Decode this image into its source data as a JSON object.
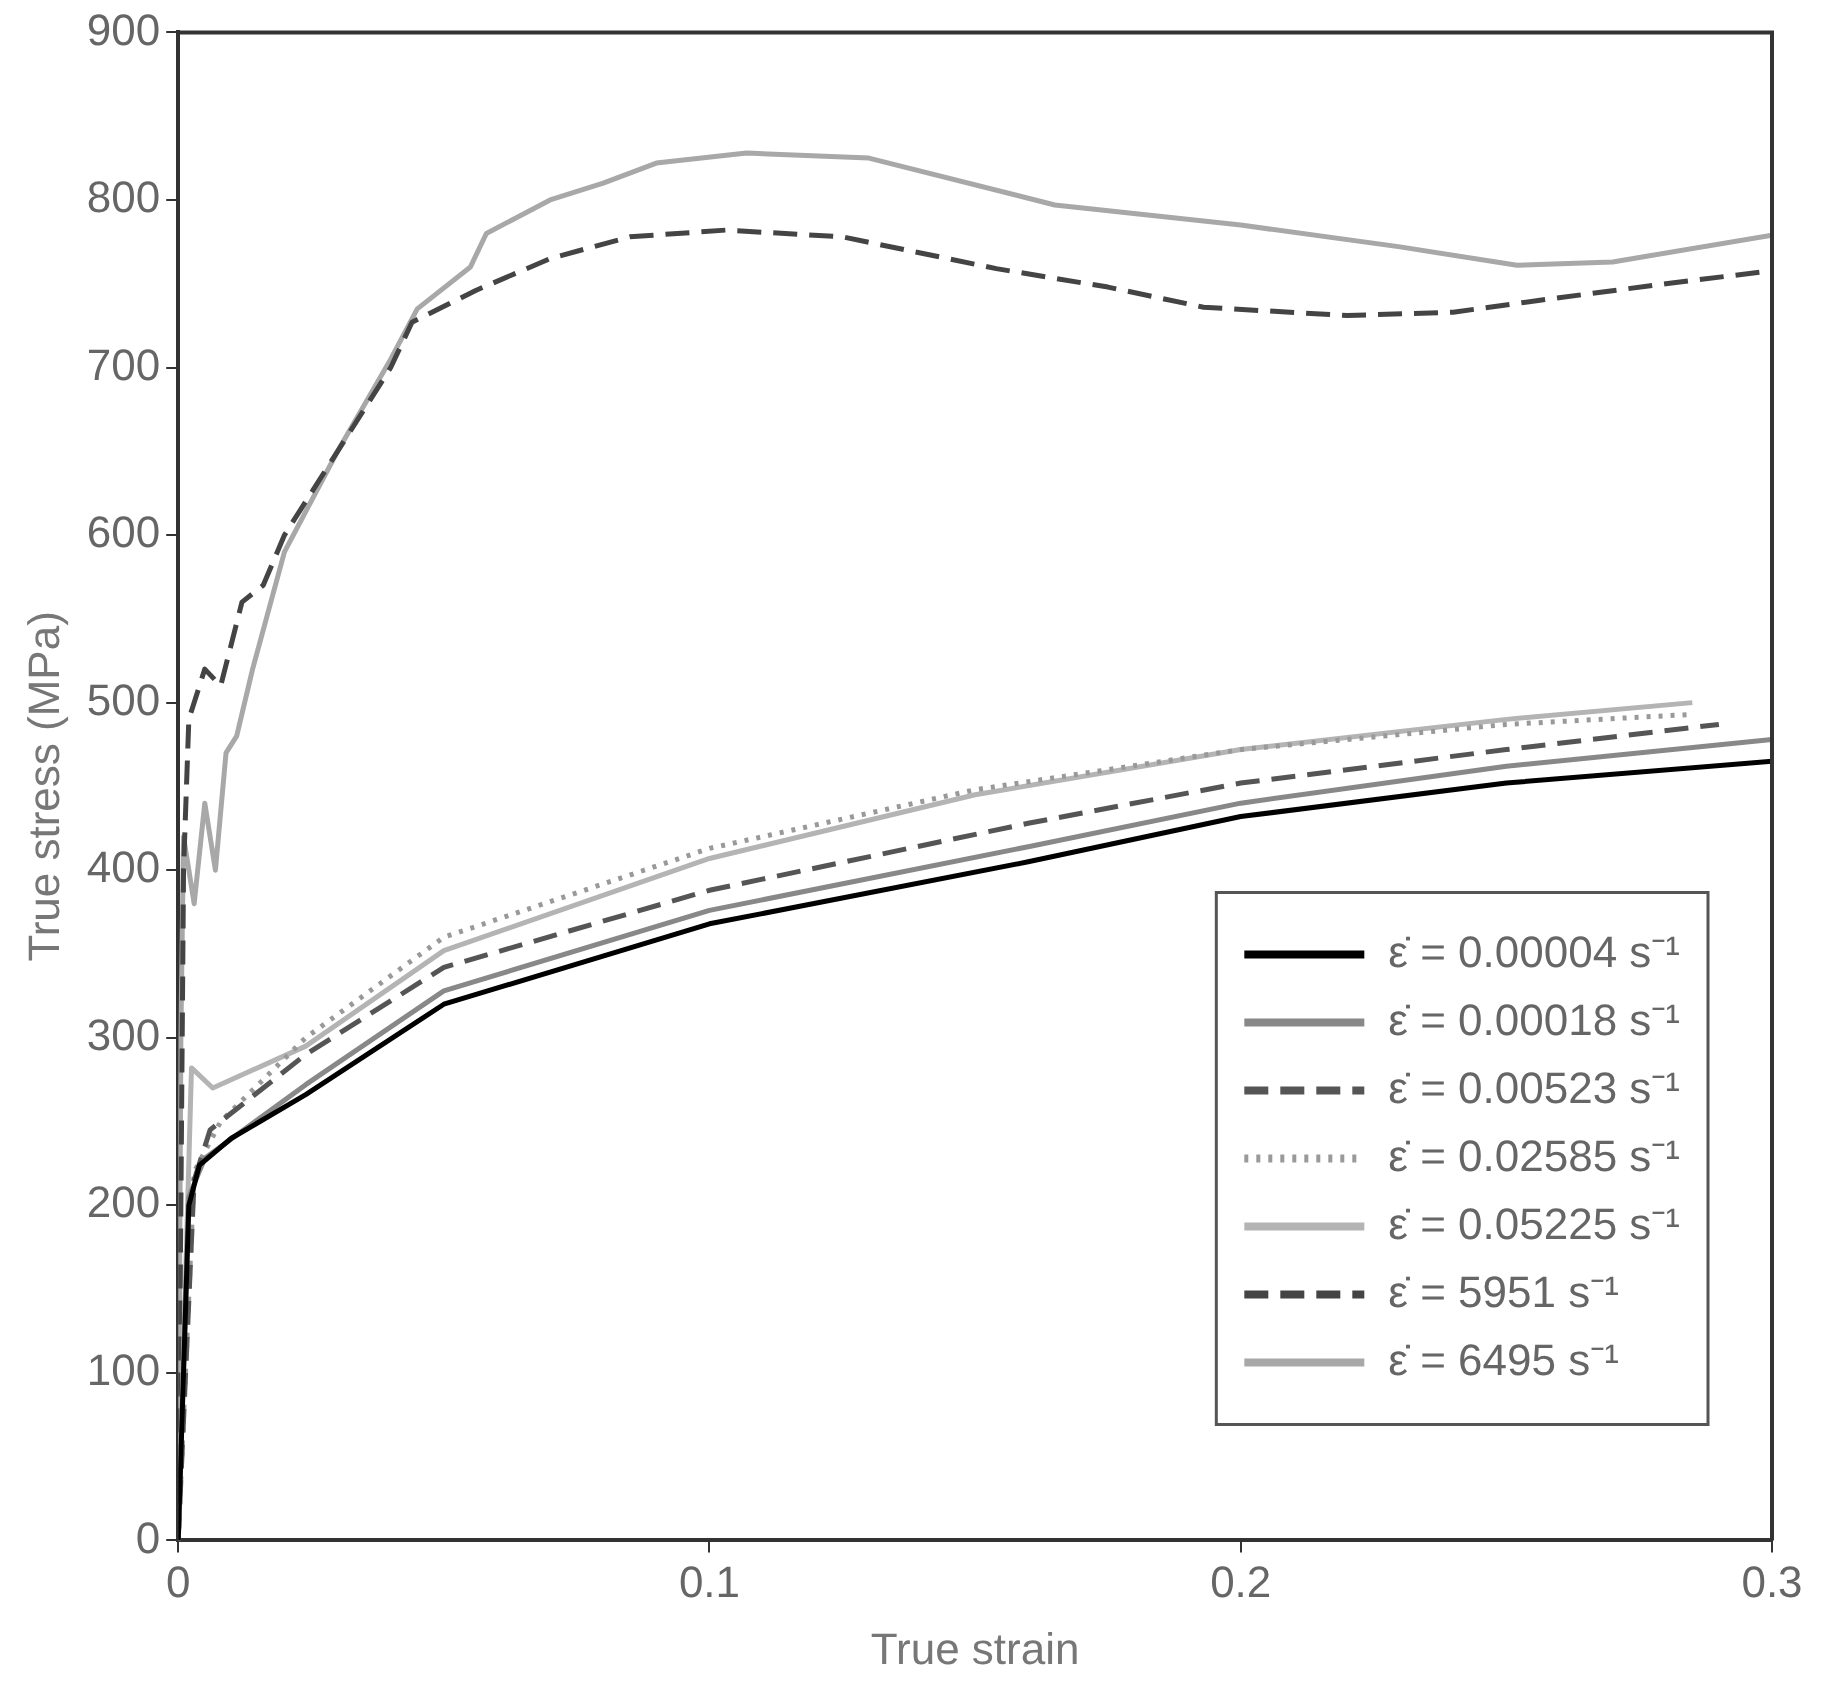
{
  "chart_data": {
    "type": "line",
    "xlabel": "True strain",
    "ylabel": "True stress (MPa)",
    "xlim": [
      0,
      0.3
    ],
    "xticks": [
      0,
      0.1,
      0.2,
      0.3
    ],
    "ylim": [
      0,
      900
    ],
    "yticks": [
      0,
      100,
      200,
      300,
      400,
      500,
      600,
      700,
      800,
      900
    ],
    "grid": false,
    "legend": "bottom right",
    "marker": "none",
    "series": [
      {
        "name": "ε̇ = 0.00004 s⁻¹",
        "color": "#000000",
        "line_style": "solid",
        "x": [
          0,
          0.002,
          0.004,
          0.01,
          0.024,
          0.05,
          0.1,
          0.16,
          0.2,
          0.25,
          0.3
        ],
        "values": [
          0,
          200,
          224,
          240,
          266,
          320,
          368,
          405,
          432,
          452,
          465
        ]
      },
      {
        "name": "ε̇ = 0.00018 s⁻¹",
        "color": "#888888",
        "line_style": "solid",
        "x": [
          0,
          0.002,
          0.005,
          0.024,
          0.05,
          0.1,
          0.16,
          0.2,
          0.25,
          0.3
        ],
        "values": [
          0,
          205,
          228,
          272,
          328,
          376,
          414,
          440,
          462,
          478
        ]
      },
      {
        "name": "ε̇ = 0.00523 s⁻¹",
        "color": "#555555",
        "line_style": "dashed",
        "x": [
          0,
          0.003,
          0.006,
          0.024,
          0.05,
          0.1,
          0.16,
          0.2,
          0.25,
          0.29
        ],
        "values": [
          0,
          215,
          245,
          290,
          342,
          388,
          428,
          452,
          472,
          487
        ]
      },
      {
        "name": "ε̇ = 0.02585 s⁻¹",
        "color": "#999999",
        "line_style": "dotted",
        "x": [
          0,
          0.003,
          0.008,
          0.024,
          0.05,
          0.1,
          0.15,
          0.2,
          0.25,
          0.285
        ],
        "values": [
          0,
          220,
          250,
          300,
          360,
          413,
          448,
          472,
          487,
          493
        ]
      },
      {
        "name": "ε̇ = 0.05225 s⁻¹",
        "color": "#b4b4b4",
        "line_style": "solid",
        "x": [
          0,
          0.0025,
          0.0065,
          0.024,
          0.05,
          0.1,
          0.15,
          0.2,
          0.25,
          0.285
        ],
        "values": [
          0,
          282,
          270,
          295,
          352,
          407,
          445,
          472,
          490,
          500
        ]
      },
      {
        "name": "ε̇ = 5951 s⁻¹",
        "color": "#444444",
        "line_style": "dashed",
        "x": [
          0,
          0.001,
          0.002,
          0.005,
          0.008,
          0.012,
          0.016,
          0.02,
          0.03,
          0.04,
          0.044,
          0.056,
          0.07,
          0.085,
          0.103,
          0.125,
          0.154,
          0.175,
          0.193,
          0.22,
          0.24,
          0.256,
          0.28,
          0.298
        ],
        "values": [
          0,
          400,
          490,
          520,
          510,
          560,
          570,
          600,
          650,
          700,
          727,
          746,
          765,
          778,
          782,
          778,
          759,
          748,
          736,
          731,
          733,
          740,
          750,
          757
        ]
      },
      {
        "name": "ε̇ = 6495 s⁻¹",
        "color": "#a8a8a8",
        "line_style": "solid",
        "x": [
          0,
          0.0005,
          0.001,
          0.003,
          0.005,
          0.007,
          0.009,
          0.011,
          0.014,
          0.02,
          0.03,
          0.04,
          0.045,
          0.055,
          0.058,
          0.07,
          0.08,
          0.09,
          0.107,
          0.13,
          0.165,
          0.2,
          0.23,
          0.252,
          0.27,
          0.3
        ],
        "values": [
          0,
          300,
          420,
          380,
          440,
          400,
          470,
          480,
          520,
          590,
          650,
          705,
          735,
          760,
          780,
          800,
          810,
          822,
          828,
          825,
          797,
          785,
          772,
          761,
          763,
          779
        ]
      }
    ]
  }
}
